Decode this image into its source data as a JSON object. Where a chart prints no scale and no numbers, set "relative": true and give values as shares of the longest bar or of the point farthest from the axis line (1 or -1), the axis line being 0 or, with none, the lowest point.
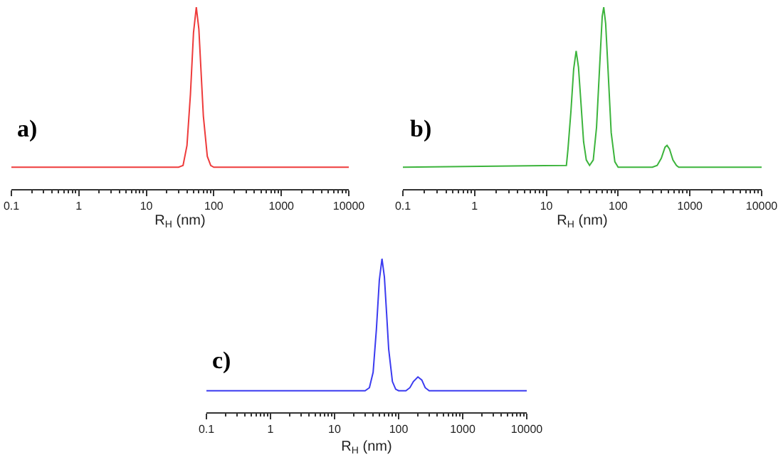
{
  "chart_data": [
    {
      "type": "line",
      "relative": true,
      "log": "x",
      "xlabel": "R$_{H}$ (nm)",
      "annotations": [
        "a)"
      ],
      "xlim": [
        0.1,
        10000
      ],
      "xticks": [
        0.1,
        1,
        10,
        100,
        1000,
        10000
      ],
      "grid": false,
      "tick_labels": "x",
      "series": [
        {
          "color": "#ee3b3b",
          "x": [
            0.1,
            30,
            35,
            40,
            45,
            50,
            55,
            60,
            65,
            70,
            80,
            90,
            100,
            10000
          ],
          "values": [
            0.12,
            0.12,
            0.13,
            0.24,
            0.52,
            0.86,
            1,
            0.88,
            0.63,
            0.4,
            0.18,
            0.13,
            0.12,
            0.12
          ]
        }
      ]
    },
    {
      "type": "line",
      "relative": true,
      "log": "x",
      "xlabel": "R$_{H}$ (nm)",
      "annotations": [
        "b)"
      ],
      "xlim": [
        0.1,
        10000
      ],
      "xticks": [
        0.1,
        1,
        10,
        100,
        1000,
        10000
      ],
      "grid": false,
      "tick_labels": "x",
      "series": [
        {
          "color": "#3cb43c",
          "x": [
            0.1,
            19,
            20,
            22,
            24,
            26,
            28,
            30,
            33,
            36,
            40,
            45,
            50,
            55,
            60,
            63,
            67,
            72,
            80,
            90,
            100,
            300,
            350,
            400,
            450,
            480,
            520,
            580,
            650,
            700,
            10000
          ],
          "values": [
            0.12,
            0.13,
            0.22,
            0.43,
            0.66,
            0.76,
            0.67,
            0.5,
            0.26,
            0.16,
            0.13,
            0.16,
            0.34,
            0.66,
            0.95,
            1,
            0.91,
            0.67,
            0.31,
            0.15,
            0.12,
            0.12,
            0.13,
            0.17,
            0.23,
            0.24,
            0.22,
            0.16,
            0.13,
            0.12,
            0.12
          ]
        }
      ]
    },
    {
      "type": "line",
      "relative": true,
      "log": "x",
      "xlabel": "R$_{H}$ (nm)",
      "annotations": [
        "c)"
      ],
      "xlim": [
        0.1,
        10000
      ],
      "xticks": [
        0.1,
        1,
        10,
        100,
        1000,
        10000
      ],
      "grid": false,
      "tick_labels": "x",
      "series": [
        {
          "color": "#3b3bf0",
          "x": [
            0.1,
            30,
            35,
            40,
            45,
            50,
            55,
            60,
            65,
            70,
            80,
            90,
            100,
            130,
            150,
            170,
            200,
            230,
            260,
            300,
            10000
          ],
          "values": [
            0.14,
            0.14,
            0.16,
            0.26,
            0.54,
            0.86,
            1,
            0.88,
            0.64,
            0.41,
            0.2,
            0.15,
            0.14,
            0.14,
            0.16,
            0.2,
            0.23,
            0.21,
            0.16,
            0.14,
            0.14
          ]
        }
      ]
    }
  ]
}
